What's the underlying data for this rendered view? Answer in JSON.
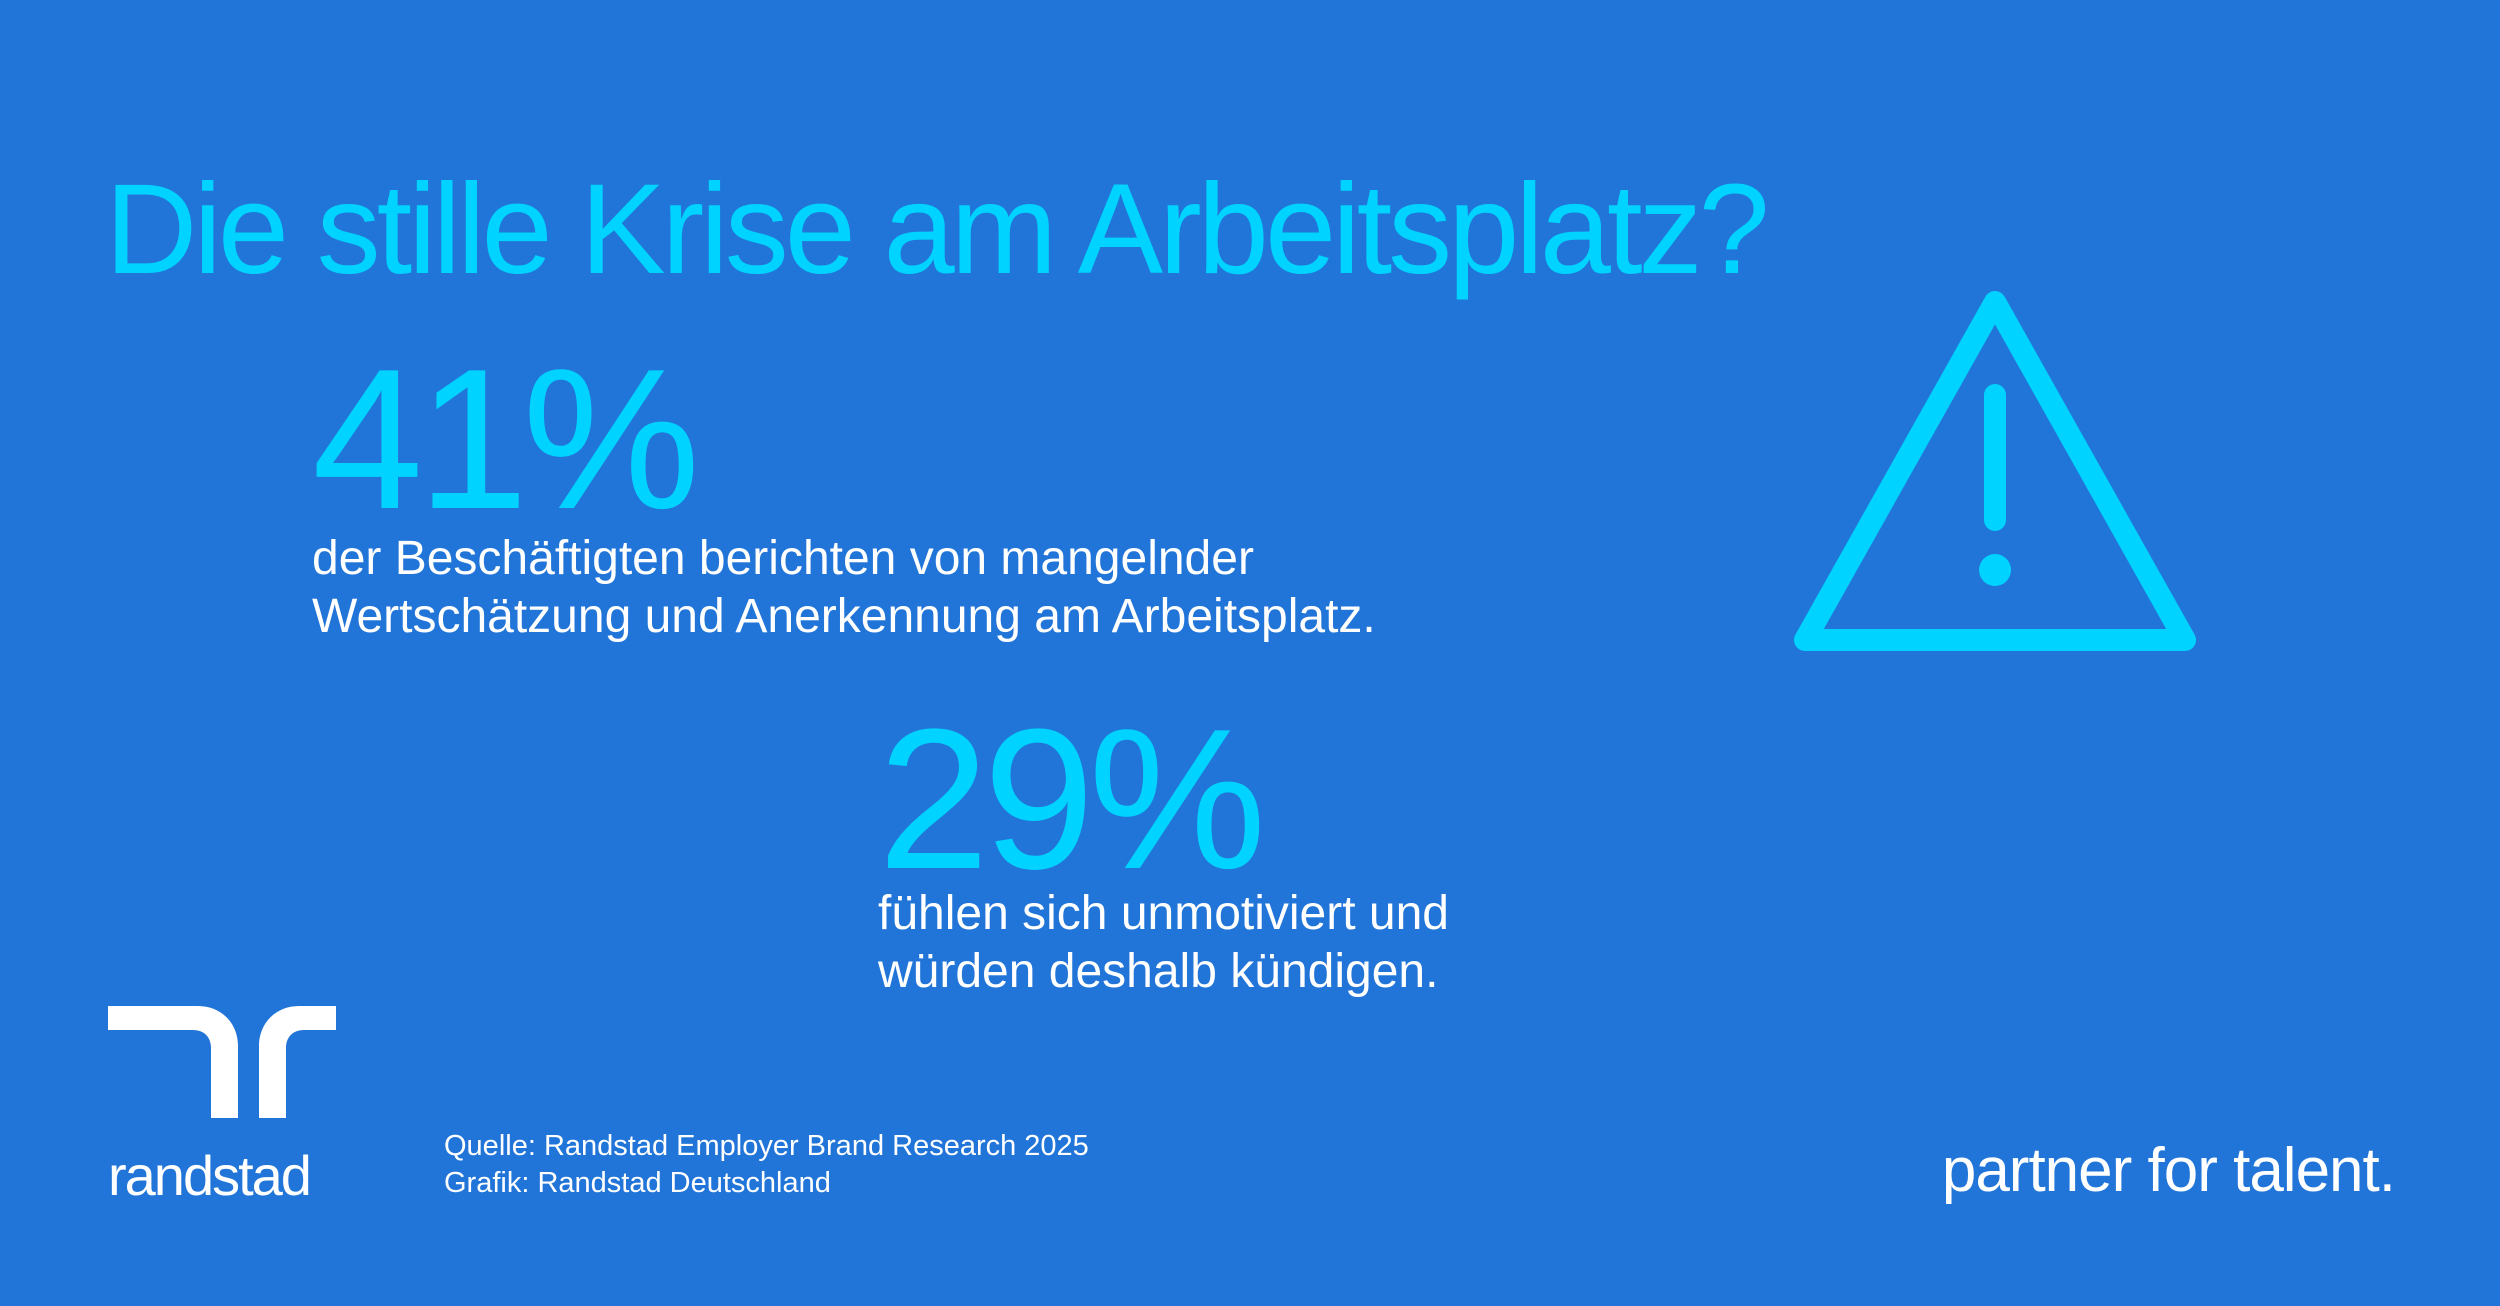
{
  "title": "Die stille Krise am Arbeitsplatz?",
  "stats": [
    {
      "value": "41%",
      "description_lines": [
        "der Beschäftigten berichten von mangelnder",
        "Wertschätzung und Anerkennung am Arbeitsplatz."
      ]
    },
    {
      "value": "29%",
      "description_lines": [
        "fühlen sich unmotiviert und",
        "würden deshalb kündigen."
      ]
    }
  ],
  "icons": {
    "warning": "warning-triangle-icon",
    "logo": "randstad-logo-mark"
  },
  "logo": {
    "wordmark": "randstad"
  },
  "source": {
    "line1": "Quelle: Randstad Employer Brand Research 2025",
    "line2": "Grafik: Randstad Deutschland"
  },
  "tagline": "partner for talent.",
  "colors": {
    "background": "#2175d9",
    "accent": "#00d3ff",
    "text": "#ffffff"
  }
}
